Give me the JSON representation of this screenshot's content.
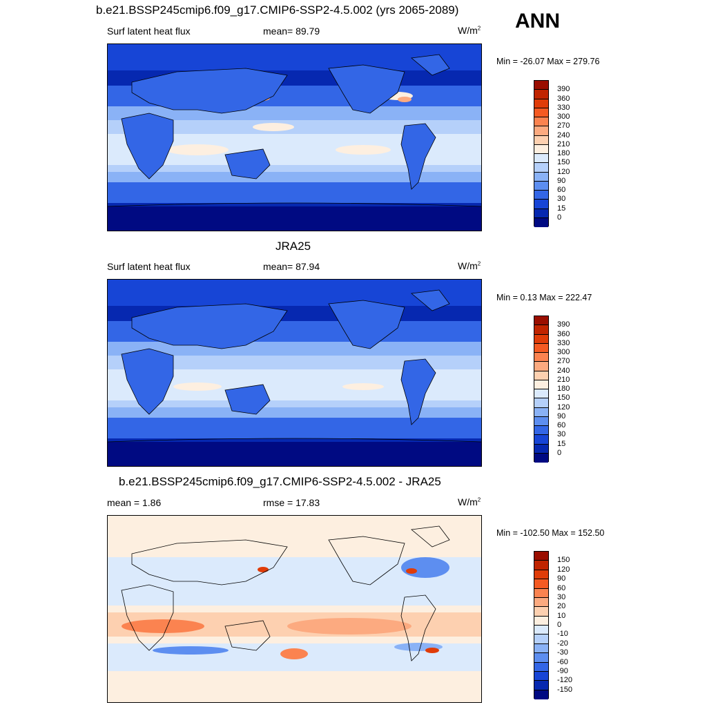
{
  "header": {
    "title": "b.e21.BSSP245cmip6.f09_g17.CMIP6-SSP2-4.5.002 (yrs 2065-2089)",
    "season": "ANN"
  },
  "panels": [
    {
      "label": "Surf latent heat flux",
      "stat": "mean=  89.79",
      "units": "W/m",
      "units_sup": "2",
      "minmax": "Min = -26.07 Max = 279.76",
      "colorbar": {
        "labels": [
          "390",
          "360",
          "330",
          "300",
          "270",
          "240",
          "210",
          "180",
          "150",
          "120",
          "90",
          "60",
          "30",
          "15",
          "0"
        ],
        "colors": [
          "#9a0e00",
          "#c02400",
          "#e03c08",
          "#f55a22",
          "#fb8350",
          "#fcaa80",
          "#fdd0b0",
          "#fdefe0",
          "#dbeafc",
          "#b5d0fa",
          "#8ab2f6",
          "#5d8ef0",
          "#3366e6",
          "#1745d6",
          "#0628b0",
          "#000a82"
        ]
      }
    },
    {
      "title": "JRA25",
      "label": "Surf latent heat flux",
      "stat": "mean=  87.94",
      "units": "W/m",
      "units_sup": "2",
      "minmax": "Min =   0.13 Max = 222.47",
      "colorbar": {
        "labels": [
          "390",
          "360",
          "330",
          "300",
          "270",
          "240",
          "210",
          "180",
          "150",
          "120",
          "90",
          "60",
          "30",
          "15",
          "0"
        ],
        "colors": [
          "#9a0e00",
          "#c02400",
          "#e03c08",
          "#f55a22",
          "#fb8350",
          "#fcaa80",
          "#fdd0b0",
          "#fdefe0",
          "#dbeafc",
          "#b5d0fa",
          "#8ab2f6",
          "#5d8ef0",
          "#3366e6",
          "#1745d6",
          "#0628b0",
          "#000a82"
        ]
      }
    },
    {
      "title": "b.e21.BSSP245cmip6.f09_g17.CMIP6-SSP2-4.5.002 - JRA25",
      "label": "mean =   1.86",
      "stat": "rmse =  17.83",
      "units": "W/m",
      "units_sup": "2",
      "minmax": "Min = -102.50 Max = 152.50",
      "colorbar": {
        "labels": [
          "150",
          "120",
          "90",
          "60",
          "30",
          "20",
          "10",
          "0",
          "-10",
          "-20",
          "-30",
          "-60",
          "-90",
          "-120",
          "-150"
        ],
        "colors": [
          "#9a0e00",
          "#c02400",
          "#e03c08",
          "#f55a22",
          "#fb8350",
          "#fcaa80",
          "#fdd0b0",
          "#fdefe0",
          "#dbeafc",
          "#b5d0fa",
          "#8ab2f6",
          "#5d8ef0",
          "#3366e6",
          "#1745d6",
          "#0628b0",
          "#000a82"
        ]
      }
    }
  ]
}
